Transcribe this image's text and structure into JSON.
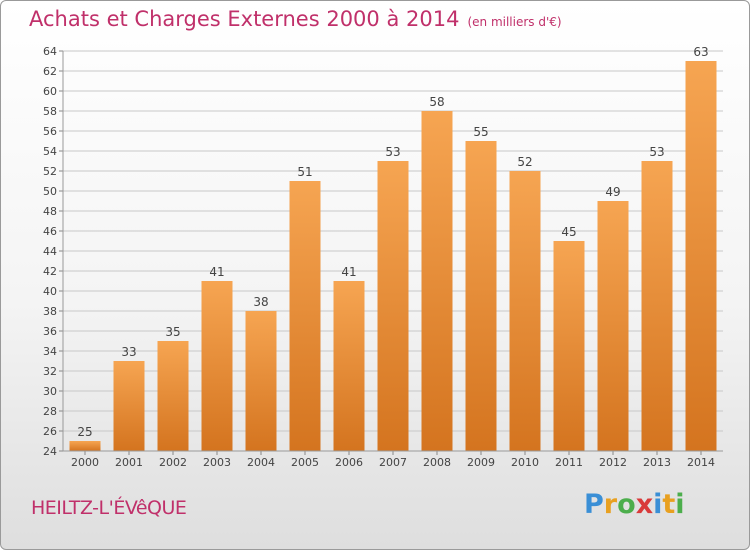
{
  "title": "Achats et Charges Externes 2000 à 2014",
  "unit_label": "(en milliers d'€)",
  "commune": "HEILTZ-L'ÉVêQUE",
  "logo": {
    "letters": [
      "P",
      "r",
      "o",
      "x",
      "i",
      "t",
      "i"
    ],
    "colors": [
      "#3a8fd6",
      "#e8a020",
      "#4cae4c",
      "#d93a3a",
      "#3a8fd6",
      "#e8a020",
      "#4cae4c"
    ]
  },
  "colors": {
    "bar_top": "#f6a552",
    "bar_bottom": "#d4741f",
    "grid": "#c8c8c8",
    "title": "#c0306a"
  },
  "chart_data": {
    "type": "bar",
    "title": "Achats et Charges Externes 2000 à 2014",
    "xlabel": "",
    "ylabel": "",
    "categories": [
      "2000",
      "2001",
      "2002",
      "2003",
      "2004",
      "2005",
      "2006",
      "2007",
      "2008",
      "2009",
      "2010",
      "2011",
      "2012",
      "2013",
      "2014"
    ],
    "values": [
      25,
      33,
      35,
      41,
      38,
      51,
      41,
      53,
      58,
      55,
      52,
      45,
      49,
      53,
      63
    ],
    "ylim": [
      24,
      64
    ],
    "yticks": [
      24,
      26,
      28,
      30,
      32,
      34,
      36,
      38,
      40,
      42,
      44,
      46,
      48,
      50,
      52,
      54,
      56,
      58,
      60,
      62,
      64
    ],
    "grid": true,
    "legend": "none"
  }
}
